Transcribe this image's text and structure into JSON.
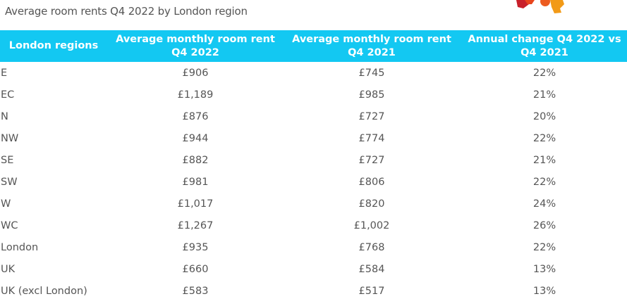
{
  "title": "Average room rents Q4 2022 by London region",
  "colors": {
    "header_bg": "#13c8f2",
    "text": "#555555"
  },
  "table": {
    "headers": [
      "London regions",
      "Average monthly room rent Q4 2022",
      "Average monthly room rent Q4 2021",
      "Annual change Q4 2022 vs Q4 2021"
    ],
    "rows": [
      [
        "E",
        "£906",
        "£745",
        "22%"
      ],
      [
        "EC",
        "£1,189",
        "£985",
        "21%"
      ],
      [
        "N",
        "£876",
        "£727",
        "20%"
      ],
      [
        "NW",
        "£944",
        "£774",
        "22%"
      ],
      [
        "SE",
        "£882",
        "£727",
        "21%"
      ],
      [
        "SW",
        "£981",
        "£806",
        "22%"
      ],
      [
        "W",
        "£1,017",
        "£820",
        "24%"
      ],
      [
        "WC",
        "£1,267",
        "£1,002",
        "26%"
      ],
      [
        "London",
        "£935",
        "£768",
        "22%"
      ],
      [
        "UK",
        "£660",
        "£584",
        "13%"
      ],
      [
        "UK (excl London)",
        "£583",
        "£517",
        "13%"
      ]
    ]
  }
}
